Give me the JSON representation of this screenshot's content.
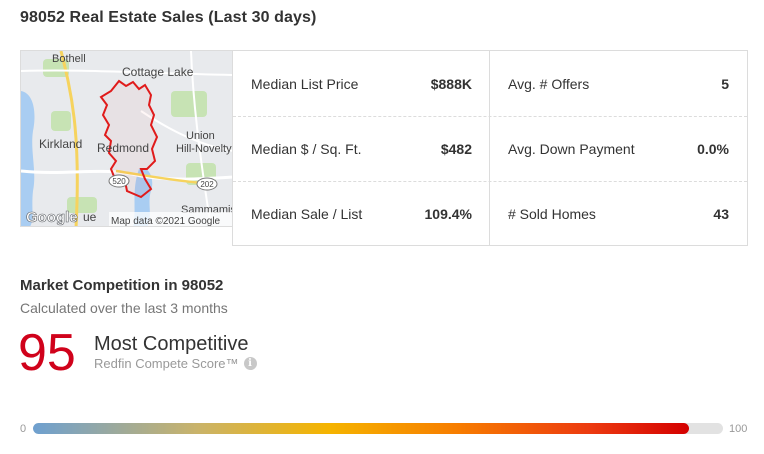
{
  "header": {
    "title": "98052 Real Estate Sales (Last 30 days)"
  },
  "map": {
    "labels": {
      "bothell": "Bothell",
      "cottage_lake": "Cottage Lake",
      "kirkland": "Kirkland",
      "redmond": "Redmond",
      "union_hill_1": "Union",
      "union_hill_2": "Hill-Novelty H",
      "sammamish": "Sammamish",
      "bellevue_frag": "ue",
      "route_520": "520",
      "route_202": "202"
    },
    "logo": "Google",
    "attribution": "Map data ©2021 Google",
    "colors": {
      "boundary": "#e01b1b",
      "water": "#a9cdf2",
      "land": "#e8eaed",
      "park": "#c7e3b4"
    }
  },
  "stats": [
    {
      "label": "Median List Price",
      "value": "$888K"
    },
    {
      "label": "Avg. # Offers",
      "value": "5"
    },
    {
      "label": "Median $ / Sq. Ft.",
      "value": "$482"
    },
    {
      "label": "Avg. Down Payment",
      "value": "0.0%"
    },
    {
      "label": "Median Sale / List",
      "value": "109.4%"
    },
    {
      "label": "# Sold Homes",
      "value": "43"
    }
  ],
  "competition": {
    "title": "Market Competition in 98052",
    "subtitle": "Calculated over the last 3 months",
    "score": "95",
    "level": "Most Competitive",
    "score_name": "Redfin Compete Score™",
    "info_icon": "i",
    "scale_min": "0",
    "scale_max": "100",
    "fill_percent": 95,
    "score_color": "#d0021b"
  }
}
